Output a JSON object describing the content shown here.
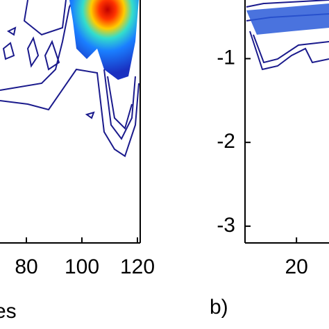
{
  "chart_data": [
    {
      "type": "contour",
      "xlabel": "es",
      "xlim": [
        70.5,
        121
      ],
      "xticks": [
        80,
        100,
        120
      ]
    },
    {
      "type": "contour",
      "panel_label": "b)",
      "xlim": [
        10.5,
        26
      ],
      "xticks": [
        20
      ],
      "ylim": [
        -3.2,
        -0.3
      ],
      "yticks": [
        -1,
        -2,
        -3
      ]
    }
  ]
}
